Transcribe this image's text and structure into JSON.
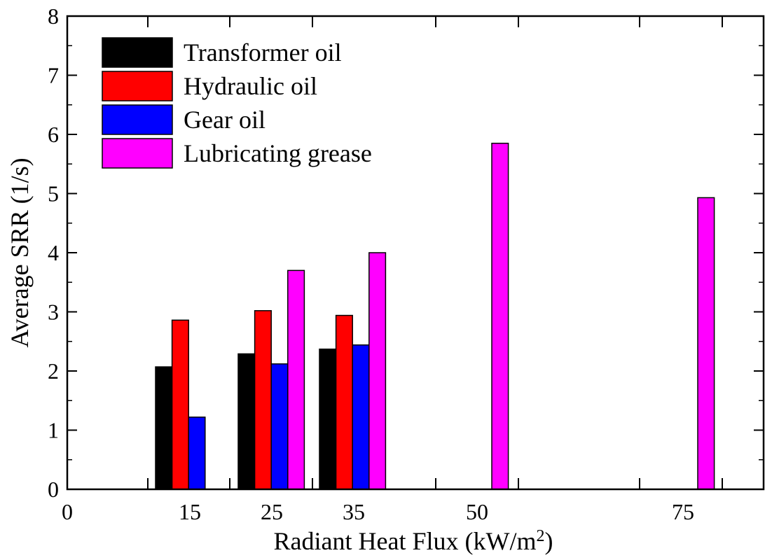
{
  "chart_data": {
    "type": "bar",
    "xlabel": "Radiant Heat Flux (kW/m",
    "xlabel_sup": "2",
    "xlabel_close": ")",
    "ylabel": "Average SRR (1/s)",
    "ylim": [
      0,
      8
    ],
    "yticks": [
      "0",
      "1",
      "2",
      "3",
      "4",
      "5",
      "6",
      "7",
      "8"
    ],
    "x_origin_label": "0",
    "categories": [
      "15",
      "25",
      "35",
      "50",
      "75"
    ],
    "series": [
      {
        "name": "Transformer oil",
        "color": "#000000",
        "values": [
          2.07,
          2.29,
          2.37,
          null,
          null
        ]
      },
      {
        "name": "Hydraulic oil",
        "color": "#ff0000",
        "values": [
          2.86,
          3.02,
          2.94,
          null,
          null
        ]
      },
      {
        "name": "Gear oil",
        "color": "#0000ff",
        "values": [
          1.22,
          2.12,
          2.44,
          null,
          null
        ]
      },
      {
        "name": "Lubricating grease",
        "color": "#ff00ff",
        "values": [
          null,
          3.7,
          4.0,
          5.85,
          4.93
        ]
      }
    ],
    "legend_position": "top-left",
    "grid": false
  }
}
